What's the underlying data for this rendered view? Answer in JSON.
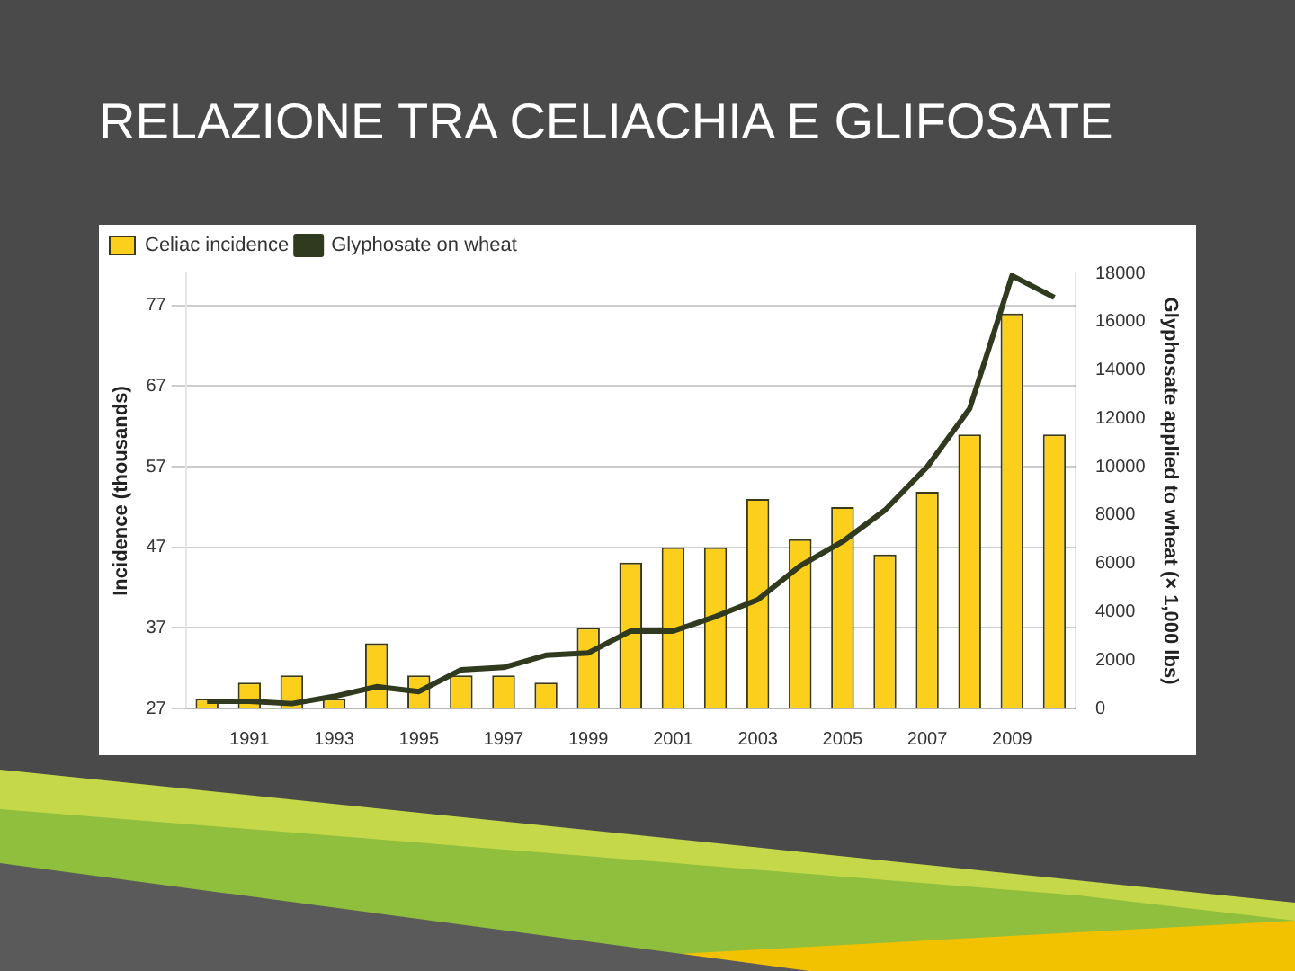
{
  "chart_data": {
    "type": "bar",
    "title": "RELAZIONE TRA CELIACHIA E GLIFOSATE",
    "ylabel": "Incidence (thousands)",
    "y2label": "Glyphosate applied to wheat (× 1,000 lbs)",
    "categories": [
      null,
      "1991",
      null,
      "1993",
      null,
      "1995",
      null,
      "1997",
      null,
      "1999",
      null,
      "2001",
      null,
      "2003",
      null,
      "2005",
      null,
      "2007",
      null,
      "2009",
      null
    ],
    "series": [
      {
        "name": "Celiac incidence",
        "color": "#fccf1c",
        "values": [
          28.2,
          30.2,
          31.1,
          28.2,
          35.1,
          31.1,
          31.1,
          31.1,
          30.2,
          37,
          45.1,
          47,
          47,
          53,
          48,
          52,
          46.1,
          53.9,
          61,
          76,
          61
        ]
      },
      {
        "name": "Glyphosate on wheat",
        "type": "line",
        "axis": "y2",
        "color": "#2f3a1f",
        "values": [
          300,
          300,
          200,
          500,
          900,
          700,
          1600,
          1700,
          2200,
          2300,
          3200,
          3200,
          3800,
          4500,
          5900,
          6900,
          8200,
          10000,
          12400,
          17900,
          17000
        ]
      }
    ],
    "ylim": [
      27,
      81
    ],
    "yticks": [
      27,
      37,
      47,
      57,
      67,
      77
    ],
    "y2lim": [
      0,
      18000
    ],
    "y2ticks": [
      0,
      2000,
      4000,
      6000,
      8000,
      10000,
      12000,
      14000,
      16000,
      18000
    ],
    "grid": "y",
    "legend": "top left",
    "marker": "none",
    "line_style": "solid"
  }
}
